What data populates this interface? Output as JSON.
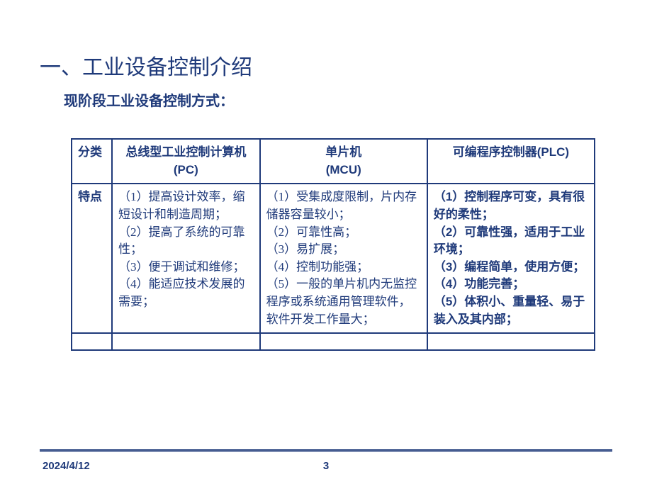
{
  "title": "一、工业设备控制介绍",
  "subtitle": "现阶段工业设备控制方式：",
  "table": {
    "headers": {
      "category": "分类",
      "pc": "总线型工业控制计算机(PC)",
      "mcu": "单片机\n(MCU)",
      "plc": "可编程序控制器(PLC)"
    },
    "row_label": "特点",
    "pc_body": "（1）提高设计效率，缩短设计和制造周期；\n（2）提高了系统的可靠性；\n（3）便于调试和维修；\n（4）能适应技术发展的需要；",
    "mcu_body": "（1）受集成度限制，片内存储器容量较小；\n（2）可靠性高；\n （3）易扩展；\n（4）控制功能强；\n（5）一般的单片机内无监控程序或系统通用管理软件，软件开发工作量大；",
    "plc_body": "（1）控制程序可变，具有很好的柔性；\n（2）可靠性强，适用于工业环境；\n（3）编程简单，使用方便；\n（4）功能完善；\n（5）体积小、重量轻、易于装入及其内部；"
  },
  "footer": {
    "date": "2024/4/12",
    "page": "3"
  },
  "colors": {
    "brand": "#1f3a7a",
    "background": "#ffffff"
  }
}
